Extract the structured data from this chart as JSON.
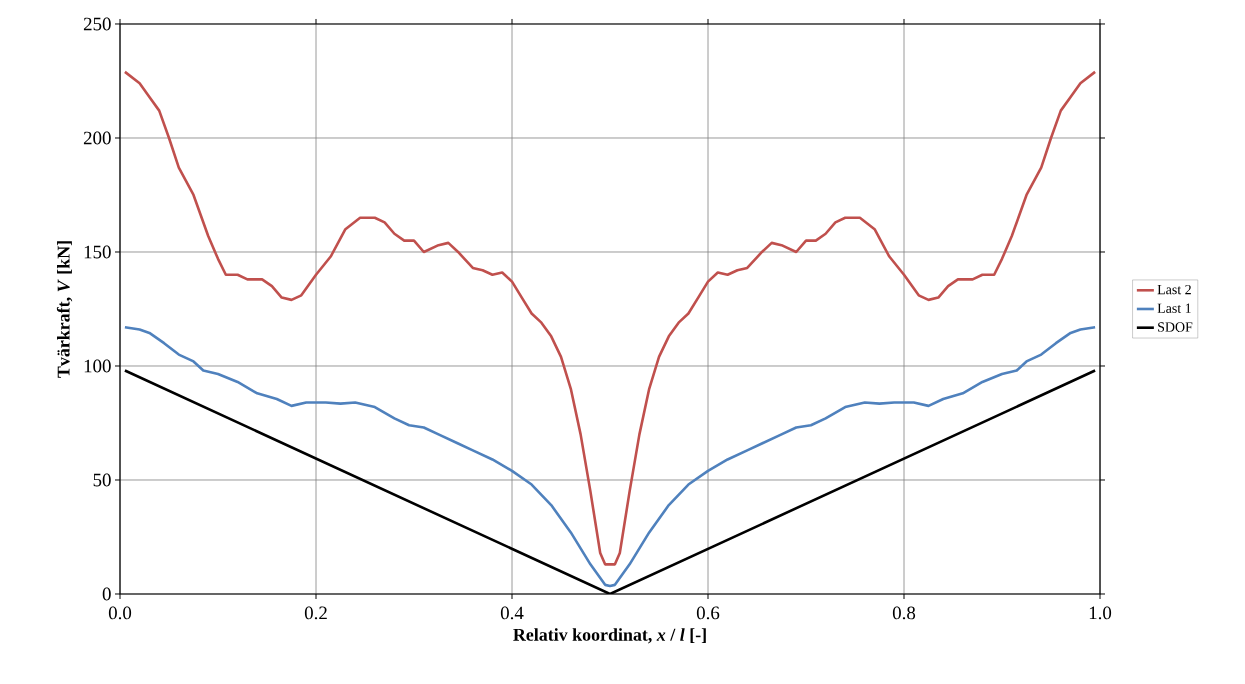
{
  "chart_data": {
    "type": "line",
    "xlabel": "Relativ koordinat, *x* / *l* [-]",
    "ylabel": "Tvärkraft, *V* [kN]",
    "xlim": [
      0,
      1
    ],
    "ylim": [
      0,
      250
    ],
    "xticks": [
      {
        "value": 0,
        "label": "0.0"
      },
      {
        "value": 0.2,
        "label": "0.2"
      },
      {
        "value": 0.4,
        "label": "0.4"
      },
      {
        "value": 0.6,
        "label": "0.6"
      },
      {
        "value": 0.8,
        "label": "0.8"
      },
      {
        "value": 1,
        "label": "1.0"
      }
    ],
    "yticks": [
      0,
      50,
      100,
      150,
      200,
      250
    ],
    "grid": true,
    "legend": "right",
    "marker": "none",
    "line_style": "solid",
    "series": [
      {
        "name": "Last 2",
        "color": "#c0504d",
        "x": [
          0.005,
          0.02,
          0.03,
          0.04,
          0.05,
          0.06,
          0.075,
          0.09,
          0.1,
          0.108,
          0.12,
          0.13,
          0.145,
          0.155,
          0.165,
          0.175,
          0.185,
          0.2,
          0.215,
          0.23,
          0.245,
          0.26,
          0.27,
          0.28,
          0.29,
          0.3,
          0.31,
          0.325,
          0.335,
          0.345,
          0.36,
          0.37,
          0.38,
          0.39,
          0.4,
          0.41,
          0.42,
          0.43,
          0.44,
          0.45,
          0.46,
          0.47,
          0.48,
          0.49,
          0.495,
          0.505,
          0.51,
          0.52,
          0.53,
          0.54,
          0.55,
          0.56,
          0.57,
          0.58,
          0.59,
          0.6,
          0.61,
          0.62,
          0.63,
          0.64,
          0.655,
          0.665,
          0.675,
          0.69,
          0.7,
          0.71,
          0.72,
          0.73,
          0.74,
          0.755,
          0.77,
          0.785,
          0.8,
          0.815,
          0.825,
          0.835,
          0.845,
          0.855,
          0.87,
          0.88,
          0.892,
          0.9,
          0.91,
          0.925,
          0.94,
          0.95,
          0.96,
          0.97,
          0.98,
          0.995
        ],
        "values": [
          229,
          224,
          218,
          212,
          200,
          187,
          175,
          157,
          147,
          140,
          140,
          138,
          138,
          135,
          130,
          129,
          131,
          140,
          148,
          160,
          165,
          165,
          163,
          158,
          155,
          155,
          150,
          153,
          154,
          150,
          143,
          142,
          140,
          141,
          137,
          130,
          123,
          119,
          113,
          104,
          90,
          70,
          45,
          18,
          13,
          13,
          18,
          45,
          70,
          90,
          104,
          113,
          119,
          123,
          130,
          137,
          141,
          140,
          142,
          143,
          150,
          154,
          153,
          150,
          155,
          155,
          158,
          163,
          165,
          165,
          160,
          148,
          140,
          131,
          129,
          130,
          135,
          138,
          138,
          140,
          140,
          147,
          157,
          175,
          187,
          200,
          212,
          218,
          224,
          229
        ]
      },
      {
        "name": "Last 1",
        "color": "#4f81bd",
        "x": [
          0.005,
          0.02,
          0.03,
          0.045,
          0.06,
          0.075,
          0.085,
          0.1,
          0.12,
          0.14,
          0.16,
          0.175,
          0.19,
          0.21,
          0.225,
          0.24,
          0.26,
          0.28,
          0.295,
          0.31,
          0.325,
          0.345,
          0.36,
          0.38,
          0.4,
          0.42,
          0.44,
          0.46,
          0.48,
          0.495,
          0.5,
          0.505,
          0.52,
          0.54,
          0.56,
          0.58,
          0.6,
          0.62,
          0.64,
          0.655,
          0.675,
          0.69,
          0.705,
          0.72,
          0.74,
          0.76,
          0.775,
          0.79,
          0.81,
          0.825,
          0.84,
          0.86,
          0.88,
          0.9,
          0.915,
          0.925,
          0.94,
          0.955,
          0.97,
          0.98,
          0.995
        ],
        "values": [
          117,
          116,
          114.5,
          110,
          105,
          102,
          98,
          96.5,
          93,
          88,
          85.5,
          82.5,
          84,
          84,
          83.5,
          84,
          82,
          77,
          74,
          73,
          70,
          66,
          63,
          59,
          54,
          48,
          39,
          27,
          13,
          4,
          3.5,
          4,
          13,
          27,
          39,
          48,
          54,
          59,
          63,
          66,
          70,
          73,
          74,
          77,
          82,
          84,
          83.5,
          84,
          84,
          82.5,
          85.5,
          88,
          93,
          96.5,
          98,
          102,
          105,
          110,
          114.5,
          116,
          117
        ]
      },
      {
        "name": "SDOF",
        "color": "#000000",
        "x": [
          0.005,
          0.5,
          0.995
        ],
        "values": [
          98,
          0,
          98
        ]
      }
    ]
  }
}
